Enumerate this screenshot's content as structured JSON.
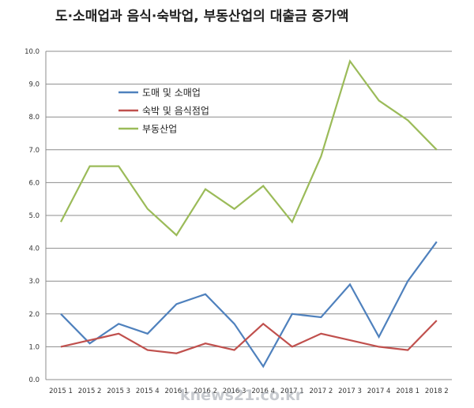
{
  "chart_data": {
    "type": "line",
    "title": "도·소매업과 음식·숙박업, 부동산업의 대출금 증가액",
    "xlabel": "",
    "ylabel": "",
    "ylim": [
      0,
      10
    ],
    "yticks": [
      "0.0",
      "1.0",
      "2.0",
      "3.0",
      "4.0",
      "5.0",
      "6.0",
      "7.0",
      "8.0",
      "9.0",
      "10.0"
    ],
    "categories": [
      "2015 1",
      "2015 2",
      "2015 3",
      "2015 4",
      "2016 1",
      "2016 2",
      "2016 3",
      "2016 4",
      "2017 1",
      "2017 2",
      "2017 3",
      "2017 4",
      "2018 1",
      "2018 2"
    ],
    "grid": true,
    "legend_position": "top-left",
    "series": [
      {
        "name": "도매 및 소매업",
        "color": "#4f81bd",
        "values": [
          2.0,
          1.1,
          1.7,
          1.4,
          2.3,
          2.6,
          1.7,
          0.4,
          2.0,
          1.9,
          2.9,
          1.3,
          3.0,
          4.2
        ]
      },
      {
        "name": "숙박 및 음식점업",
        "color": "#c0504d",
        "values": [
          1.0,
          1.2,
          1.4,
          0.9,
          0.8,
          1.1,
          0.9,
          1.7,
          1.0,
          1.4,
          1.2,
          1.0,
          0.9,
          1.8
        ]
      },
      {
        "name": "부동산업",
        "color": "#9bbb59",
        "values": [
          4.8,
          6.5,
          6.5,
          5.2,
          4.4,
          5.8,
          5.2,
          5.9,
          4.8,
          6.8,
          9.7,
          8.5,
          7.9,
          7.0
        ]
      }
    ],
    "watermark": "knews21.co.kr"
  }
}
